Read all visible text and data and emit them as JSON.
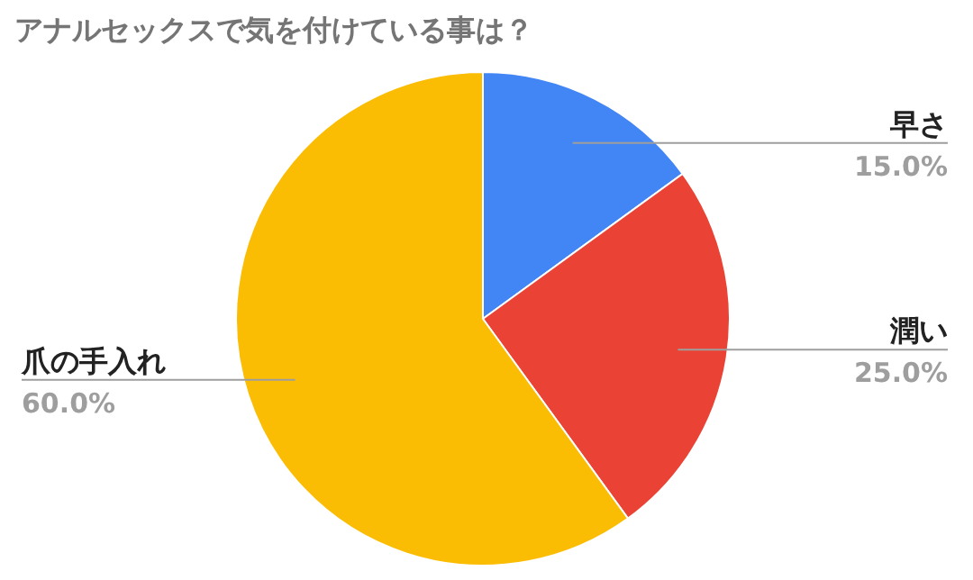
{
  "chart_data": {
    "type": "pie",
    "title": "アナルセックスで気を付けている事は？",
    "categories": [
      "早さ",
      "潤い",
      "爪の手入れ"
    ],
    "values": [
      15,
      25,
      60
    ],
    "colors": [
      "#4285f4",
      "#ea4335",
      "#fbbc04"
    ],
    "value_labels": [
      "15.0%",
      "25.0%",
      "60.0%"
    ]
  }
}
